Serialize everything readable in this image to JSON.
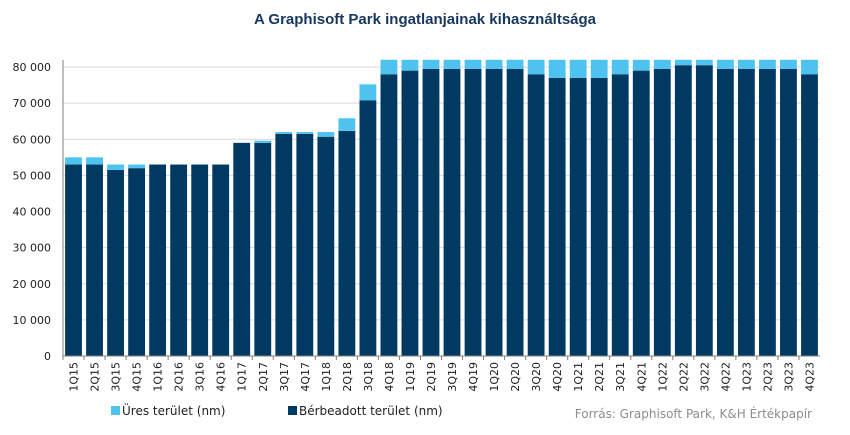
{
  "chart_data": {
    "type": "bar",
    "stacked": true,
    "title": "A Graphisoft Park ingatlanjainak kihasználtsága",
    "categories": [
      "1Q15",
      "2Q15",
      "3Q15",
      "4Q15",
      "1Q16",
      "2Q16",
      "3Q16",
      "4Q16",
      "1Q17",
      "2Q17",
      "3Q17",
      "4Q17",
      "1Q18",
      "2Q18",
      "3Q18",
      "4Q18",
      "1Q19",
      "2Q19",
      "3Q19",
      "4Q19",
      "1Q20",
      "2Q20",
      "3Q20",
      "4Q20",
      "1Q21",
      "2Q21",
      "3Q21",
      "4Q21",
      "1Q22",
      "2Q22",
      "3Q22",
      "4Q22",
      "1Q23",
      "2Q23",
      "3Q23",
      "4Q23"
    ],
    "series": [
      {
        "name": "Bérbeadott terület (nm)",
        "color": "#003a63",
        "values": [
          53000,
          53000,
          51500,
          52000,
          53000,
          53000,
          53000,
          53000,
          59000,
          59000,
          61500,
          61500,
          60700,
          62300,
          70800,
          78000,
          79000,
          79500,
          79500,
          79500,
          79500,
          79500,
          78000,
          77000,
          77000,
          77000,
          78000,
          79000,
          79500,
          80500,
          80500,
          79500,
          79500,
          79500,
          79500,
          78000
        ]
      },
      {
        "name": "Üres terület (nm)",
        "color": "#4fc3f0",
        "values": [
          2000,
          2000,
          1500,
          1000,
          0,
          0,
          0,
          0,
          0,
          600,
          500,
          500,
          1300,
          3500,
          4400,
          4000,
          3000,
          2500,
          2500,
          2500,
          2500,
          2500,
          4000,
          5000,
          5000,
          5000,
          4000,
          3000,
          2500,
          1500,
          1500,
          2500,
          2500,
          2500,
          2500,
          4000
        ]
      }
    ],
    "ylim": [
      0,
      80000
    ],
    "yticks": [
      "0",
      "10 000",
      "20 000",
      "30 000",
      "40 000",
      "50 000",
      "60 000",
      "70 000",
      "80 000"
    ],
    "ytick_values": [
      0,
      10000,
      20000,
      30000,
      40000,
      50000,
      60000,
      70000,
      80000
    ],
    "grid": true,
    "legend": [
      {
        "label": "Üres terület (nm)",
        "color": "#4fc3f0"
      },
      {
        "label": "Bérbeadott terület (nm)",
        "color": "#003a63"
      }
    ],
    "legend_position": "bottom-left",
    "source": "Forrás: Graphisoft Park, K&H Értékpapír"
  }
}
